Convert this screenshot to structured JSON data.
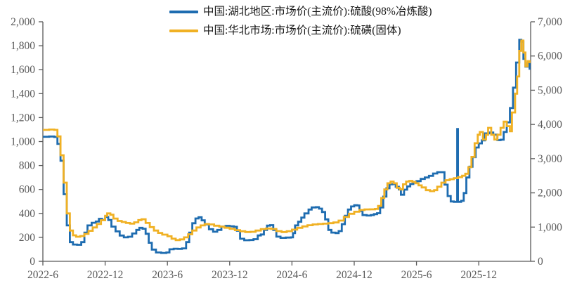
{
  "chart_data": {
    "type": "line",
    "title": "",
    "grid": false,
    "legend_position": "top-center",
    "background": "#ffffff",
    "axis_color": "#595959",
    "x_axis": {
      "unit": "year-month",
      "total_months": 47,
      "tick_months": [
        0,
        6,
        12,
        18,
        24,
        30,
        36,
        42
      ],
      "tick_labels": [
        "2022-6",
        "2022-12",
        "2023-6",
        "2023-12",
        "2024-6",
        "2024-12",
        "2025-6",
        "2025-12"
      ]
    },
    "left_axis": {
      "min": 0,
      "max": 2000,
      "step": 200,
      "tick_labels": [
        "0",
        "200",
        "400",
        "600",
        "800",
        "1,000",
        "1,200",
        "1,400",
        "1,600",
        "1,800",
        "2,000"
      ]
    },
    "right_axis": {
      "min": 0,
      "max": 7000,
      "step": 1000,
      "tick_labels": [
        "0",
        "1,000",
        "2,000",
        "3,000",
        "4,000",
        "5,000",
        "6,000",
        "7,000"
      ]
    },
    "series": [
      {
        "id": "hubei-sulfuric-acid",
        "name": "中国:湖北地区:市场价(主流价):硫酸(98%冶炼酸)",
        "axis": "left",
        "color": "#1e6cb0",
        "points": [
          [
            0,
            1040
          ],
          [
            0.6,
            1042
          ],
          [
            1.1,
            1038
          ],
          [
            1.4,
            980
          ],
          [
            1.7,
            840
          ],
          [
            2.0,
            560
          ],
          [
            2.3,
            300
          ],
          [
            2.6,
            160
          ],
          [
            2.9,
            140
          ],
          [
            3.3,
            138
          ],
          [
            3.7,
            160
          ],
          [
            4.0,
            240
          ],
          [
            4.3,
            300
          ],
          [
            4.7,
            322
          ],
          [
            5.1,
            332
          ],
          [
            5.4,
            355
          ],
          [
            5.7,
            345
          ],
          [
            6.0,
            370
          ],
          [
            6.3,
            345
          ],
          [
            6.6,
            290
          ],
          [
            7.0,
            250
          ],
          [
            7.4,
            215
          ],
          [
            7.8,
            200
          ],
          [
            8.2,
            205
          ],
          [
            8.6,
            232
          ],
          [
            9.0,
            262
          ],
          [
            9.3,
            280
          ],
          [
            9.6,
            272
          ],
          [
            9.9,
            230
          ],
          [
            10.2,
            155
          ],
          [
            10.5,
            98
          ],
          [
            10.9,
            74
          ],
          [
            11.4,
            70
          ],
          [
            11.9,
            74
          ],
          [
            12.2,
            100
          ],
          [
            12.6,
            105
          ],
          [
            13.0,
            103
          ],
          [
            13.4,
            108
          ],
          [
            13.8,
            160
          ],
          [
            14.1,
            240
          ],
          [
            14.4,
            318
          ],
          [
            14.7,
            358
          ],
          [
            15.0,
            368
          ],
          [
            15.3,
            342
          ],
          [
            15.6,
            308
          ],
          [
            16.0,
            268
          ],
          [
            16.4,
            247
          ],
          [
            16.8,
            262
          ],
          [
            17.2,
            290
          ],
          [
            17.6,
            296
          ],
          [
            18.0,
            292
          ],
          [
            18.4,
            288
          ],
          [
            18.7,
            255
          ],
          [
            19.0,
            188
          ],
          [
            19.4,
            176
          ],
          [
            19.9,
            178
          ],
          [
            20.3,
            185
          ],
          [
            20.7,
            216
          ],
          [
            21.0,
            224
          ],
          [
            21.3,
            262
          ],
          [
            21.6,
            298
          ],
          [
            21.9,
            302
          ],
          [
            22.2,
            262
          ],
          [
            22.5,
            206
          ],
          [
            22.9,
            196
          ],
          [
            23.4,
            198
          ],
          [
            23.9,
            200
          ],
          [
            24.1,
            235
          ],
          [
            24.3,
            300
          ],
          [
            24.6,
            330
          ],
          [
            24.9,
            365
          ],
          [
            25.2,
            400
          ],
          [
            25.6,
            432
          ],
          [
            25.9,
            450
          ],
          [
            26.3,
            452
          ],
          [
            26.6,
            440
          ],
          [
            26.9,
            412
          ],
          [
            27.2,
            350
          ],
          [
            27.5,
            262
          ],
          [
            27.8,
            240
          ],
          [
            28.2,
            236
          ],
          [
            28.5,
            252
          ],
          [
            28.8,
            310
          ],
          [
            29.1,
            380
          ],
          [
            29.4,
            432
          ],
          [
            29.7,
            458
          ],
          [
            30.0,
            468
          ],
          [
            30.3,
            466
          ],
          [
            30.5,
            420
          ],
          [
            30.8,
            386
          ],
          [
            31.2,
            382
          ],
          [
            31.6,
            386
          ],
          [
            31.9,
            394
          ],
          [
            32.2,
            402
          ],
          [
            32.5,
            450
          ],
          [
            32.8,
            540
          ],
          [
            33.1,
            610
          ],
          [
            33.4,
            642
          ],
          [
            33.7,
            645
          ],
          [
            34.0,
            622
          ],
          [
            34.3,
            600
          ],
          [
            34.5,
            556
          ],
          [
            34.8,
            598
          ],
          [
            35.1,
            625
          ],
          [
            35.4,
            645
          ],
          [
            35.7,
            663
          ],
          [
            36.0,
            670
          ],
          [
            36.4,
            688
          ],
          [
            36.8,
            700
          ],
          [
            37.2,
            714
          ],
          [
            37.6,
            733
          ],
          [
            38.0,
            744
          ],
          [
            38.4,
            744
          ],
          [
            38.7,
            640
          ],
          [
            39.0,
            545
          ],
          [
            39.3,
            500
          ],
          [
            39.6,
            497
          ],
          [
            39.85,
            497
          ],
          [
            39.92,
            1105
          ],
          [
            40.0,
            497
          ],
          [
            40.3,
            505
          ],
          [
            40.55,
            570
          ],
          [
            40.8,
            700
          ],
          [
            41.1,
            790
          ],
          [
            41.4,
            870
          ],
          [
            41.7,
            950
          ],
          [
            42.0,
            985
          ],
          [
            42.3,
            1010
          ],
          [
            42.6,
            1068
          ],
          [
            43.0,
            1075
          ],
          [
            43.4,
            1058
          ],
          [
            43.8,
            1012
          ],
          [
            44.1,
            1015
          ],
          [
            44.4,
            1080
          ],
          [
            44.7,
            1160
          ],
          [
            45.0,
            1280
          ],
          [
            45.3,
            1450
          ],
          [
            45.6,
            1660
          ],
          [
            45.9,
            1850
          ],
          [
            46.1,
            1835
          ],
          [
            46.3,
            1690
          ],
          [
            46.5,
            1625
          ],
          [
            46.7,
            1655
          ],
          [
            46.9,
            1600
          ]
        ]
      },
      {
        "id": "north-china-sulfur",
        "name": "中国:华北市场:市场价(主流价):硫磺(固体)",
        "axis": "right",
        "color": "#f0b124",
        "points": [
          [
            0,
            3840
          ],
          [
            0.6,
            3850
          ],
          [
            1.1,
            3840
          ],
          [
            1.4,
            3650
          ],
          [
            1.7,
            3100
          ],
          [
            2.0,
            2300
          ],
          [
            2.3,
            1400
          ],
          [
            2.6,
            900
          ],
          [
            2.9,
            760
          ],
          [
            3.2,
            718
          ],
          [
            3.6,
            740
          ],
          [
            4.0,
            800
          ],
          [
            4.4,
            890
          ],
          [
            4.8,
            990
          ],
          [
            5.2,
            1090
          ],
          [
            5.6,
            1200
          ],
          [
            6.0,
            1330
          ],
          [
            6.2,
            1400
          ],
          [
            6.5,
            1360
          ],
          [
            6.8,
            1250
          ],
          [
            7.2,
            1180
          ],
          [
            7.6,
            1150
          ],
          [
            8.0,
            1120
          ],
          [
            8.4,
            1100
          ],
          [
            8.8,
            1140
          ],
          [
            9.2,
            1205
          ],
          [
            9.5,
            1230
          ],
          [
            9.9,
            1120
          ],
          [
            10.3,
            1000
          ],
          [
            10.7,
            900
          ],
          [
            11.1,
            830
          ],
          [
            11.5,
            780
          ],
          [
            12.0,
            730
          ],
          [
            12.4,
            660
          ],
          [
            12.8,
            620
          ],
          [
            13.2,
            640
          ],
          [
            13.6,
            700
          ],
          [
            14.0,
            790
          ],
          [
            14.4,
            900
          ],
          [
            14.8,
            990
          ],
          [
            15.2,
            1050
          ],
          [
            15.6,
            1090
          ],
          [
            16.0,
            1078
          ],
          [
            16.5,
            1040
          ],
          [
            17.0,
            1012
          ],
          [
            17.5,
            982
          ],
          [
            18.0,
            950
          ],
          [
            18.5,
            912
          ],
          [
            19.0,
            878
          ],
          [
            19.5,
            856
          ],
          [
            20.0,
            862
          ],
          [
            20.5,
            900
          ],
          [
            21.0,
            940
          ],
          [
            21.5,
            958
          ],
          [
            22.0,
            945
          ],
          [
            22.5,
            882
          ],
          [
            23.0,
            856
          ],
          [
            23.5,
            880
          ],
          [
            24.0,
            925
          ],
          [
            24.5,
            980
          ],
          [
            25.0,
            1020
          ],
          [
            25.5,
            1055
          ],
          [
            26.0,
            1078
          ],
          [
            26.5,
            1090
          ],
          [
            27.0,
            1100
          ],
          [
            27.5,
            1115
          ],
          [
            28.0,
            1135
          ],
          [
            28.5,
            1190
          ],
          [
            29.0,
            1298
          ],
          [
            29.5,
            1390
          ],
          [
            30.0,
            1450
          ],
          [
            30.5,
            1498
          ],
          [
            31.0,
            1518
          ],
          [
            31.5,
            1520
          ],
          [
            32.0,
            1532
          ],
          [
            32.3,
            1620
          ],
          [
            32.6,
            1850
          ],
          [
            32.9,
            2100
          ],
          [
            33.2,
            2280
          ],
          [
            33.5,
            2330
          ],
          [
            33.8,
            2280
          ],
          [
            34.1,
            2150
          ],
          [
            34.4,
            2100
          ],
          [
            34.7,
            2250
          ],
          [
            35.0,
            2330
          ],
          [
            35.3,
            2350
          ],
          [
            35.6,
            2320
          ],
          [
            35.9,
            2280
          ],
          [
            36.2,
            2220
          ],
          [
            36.5,
            2160
          ],
          [
            36.9,
            2080
          ],
          [
            37.3,
            2050
          ],
          [
            37.7,
            2080
          ],
          [
            38.0,
            2180
          ],
          [
            38.4,
            2300
          ],
          [
            38.8,
            2370
          ],
          [
            39.2,
            2400
          ],
          [
            39.6,
            2430
          ],
          [
            40.0,
            2460
          ],
          [
            40.4,
            2500
          ],
          [
            40.7,
            2560
          ],
          [
            41.0,
            2750
          ],
          [
            41.3,
            3050
          ],
          [
            41.6,
            3450
          ],
          [
            41.9,
            3700
          ],
          [
            42.1,
            3780
          ],
          [
            42.4,
            3560
          ],
          [
            42.7,
            3700
          ],
          [
            42.9,
            3900
          ],
          [
            43.2,
            3700
          ],
          [
            43.5,
            3560
          ],
          [
            43.8,
            3700
          ],
          [
            44.1,
            3900
          ],
          [
            44.4,
            4080
          ],
          [
            44.7,
            3950
          ],
          [
            45.0,
            3800
          ],
          [
            45.2,
            4350
          ],
          [
            45.5,
            4900
          ],
          [
            45.7,
            5400
          ],
          [
            45.9,
            6150
          ],
          [
            46.1,
            6450
          ],
          [
            46.3,
            6100
          ],
          [
            46.5,
            5700
          ],
          [
            46.7,
            5850
          ],
          [
            46.9,
            5790
          ]
        ]
      }
    ]
  },
  "legend": {
    "items": [
      {
        "label": "中国:湖北地区:市场价(主流价):硫酸(98%冶炼酸)"
      },
      {
        "label": "中国:华北市场:市场价(主流价):硫磺(固体)"
      }
    ]
  }
}
